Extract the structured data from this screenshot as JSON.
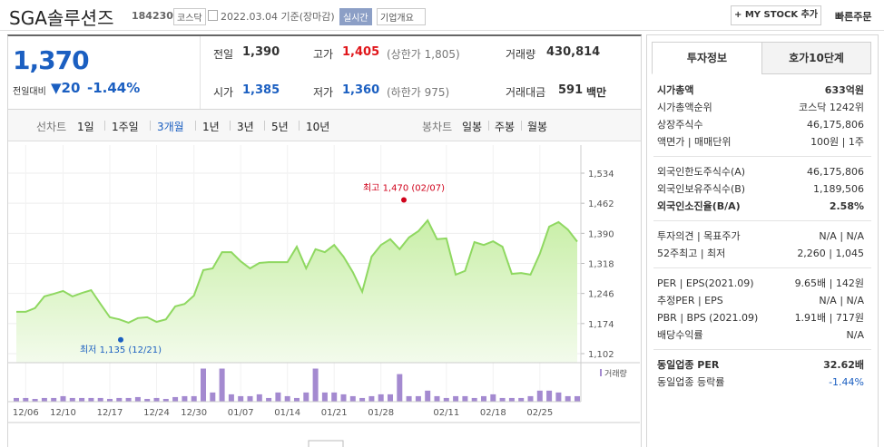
{
  "header": {
    "name": "SGA솔루션즈",
    "code": "184230",
    "market": "코스닥",
    "date": "2022.03.04 기준(장마감)",
    "realtime": "실시간",
    "overview": "기업개요",
    "mystock": "+ MY STOCK 추가",
    "quick_order": "빠른주문"
  },
  "quote": {
    "price": "1,370",
    "change_label": "전일대비",
    "change": "▼20",
    "change_pct": "-1.44%",
    "stats": [
      {
        "label": "전일",
        "value": "1,390"
      },
      {
        "label": "고가",
        "value": "1,405",
        "note": "(상한가 1,805)",
        "color": "#e0161b"
      },
      {
        "label": "거래량",
        "value": "430,814"
      },
      {
        "label": "시가",
        "value": "1,385",
        "color": "#1b5fc1"
      },
      {
        "label": "저가",
        "value": "1,360",
        "note": "(하한가 975)",
        "color": "#1b5fc1"
      },
      {
        "label": "거래대금",
        "value": "591",
        "note": "백만"
      }
    ]
  },
  "tabs": {
    "line_label": "선차트",
    "line_items": [
      "1일",
      "1주일",
      "3개월",
      "1년",
      "3년",
      "5년",
      "10년"
    ],
    "selected": 2,
    "candle_label": "봉차트",
    "candle_items": [
      "일봉",
      "주봉",
      "월봉"
    ]
  },
  "chart_data": [
    {
      "type": "line",
      "color": "#8fd861",
      "categories": [
        null,
        "12/06",
        null,
        null,
        null,
        "12/10",
        null,
        null,
        null,
        null,
        "12/17",
        null,
        null,
        null,
        null,
        "12/24",
        null,
        null,
        null,
        "12/30",
        null,
        null,
        null,
        null,
        "01/07",
        null,
        null,
        null,
        null,
        "01/14",
        null,
        null,
        null,
        null,
        "01/21",
        null,
        null,
        null,
        null,
        "01/28",
        null,
        null,
        null,
        null,
        null,
        null,
        "02/11",
        null,
        null,
        null,
        null,
        "02/18",
        null,
        null,
        null,
        null,
        "02/25",
        null,
        null,
        null,
        null
      ],
      "values": [
        1202,
        1202,
        1211,
        1239,
        1245,
        1252,
        1239,
        1247,
        1254,
        1221,
        1189,
        1184,
        1176,
        1187,
        1189,
        1178,
        1184,
        1215,
        1221,
        1241,
        1302,
        1306,
        1345,
        1345,
        1323,
        1306,
        1319,
        1321,
        1321,
        1321,
        1358,
        1306,
        1352,
        1345,
        1362,
        1334,
        1297,
        1250,
        1334,
        1362,
        1376,
        1352,
        1380,
        1395,
        1421,
        1376,
        1378,
        1291,
        1300,
        1369,
        1362,
        1371,
        1358,
        1293,
        1295,
        1291,
        1341,
        1406,
        1417,
        1399,
        1370
      ],
      "ylim": [
        1102,
        1534
      ],
      "yticks": [
        {
          "value": 1102,
          "label": "1,102"
        },
        {
          "value": 1174,
          "label": "1,174"
        },
        {
          "value": 1246,
          "label": "1,246"
        },
        {
          "value": 1318,
          "label": "1,318"
        },
        {
          "value": 1390,
          "label": "1,390"
        },
        {
          "value": 1462,
          "label": "1,462"
        },
        {
          "value": 1534,
          "label": "1,534"
        }
      ],
      "grid": true,
      "annotations": [
        {
          "text": "최고 1,470 (02/07)",
          "value": 1470,
          "color": "#d0021b"
        },
        {
          "text": "최저 1,135 (12/21)",
          "value": 1135,
          "color": "#1b5fc1"
        }
      ]
    },
    {
      "type": "bar",
      "label": "거래량",
      "color": "#a48ad0",
      "ylim": [
        0,
        2700000
      ],
      "values": [
        288000,
        288000,
        216000,
        288000,
        288000,
        432000,
        288000,
        288000,
        288000,
        288000,
        216000,
        288000,
        288000,
        360000,
        216000,
        288000,
        216000,
        360000,
        432000,
        432000,
        2592000,
        720000,
        2592000,
        576000,
        432000,
        432000,
        576000,
        288000,
        720000,
        432000,
        288000,
        720000,
        2592000,
        720000,
        720000,
        576000,
        432000,
        288000,
        432000,
        576000,
        576000,
        2160000,
        432000,
        432000,
        864000,
        432000,
        288000,
        432000,
        432000,
        288000,
        432000,
        576000,
        288000,
        288000,
        288000,
        432000,
        864000,
        864000,
        720000,
        432000,
        430814
      ]
    }
  ],
  "info": {
    "tabs": [
      "투자정보",
      "호가10단계"
    ],
    "selected": 0,
    "sections": [
      [
        {
          "label": "시가총액",
          "value": "633억원",
          "bold": true
        },
        {
          "label": "시가총액순위",
          "value": "코스닥 1242위"
        },
        {
          "label": "상장주식수",
          "value": "46,175,806"
        },
        {
          "label": "액면가 | 매매단위",
          "value": "100원 | 1주"
        }
      ],
      [
        {
          "label": "외국인한도주식수(A)",
          "value": "46,175,806"
        },
        {
          "label": "외국인보유주식수(B)",
          "value": "1,189,506"
        },
        {
          "label": "외국인소진율(B/A)",
          "value": "2.58%",
          "bold": true
        }
      ],
      [
        {
          "label": "투자의견 | 목표주가",
          "value": "N/A | N/A"
        },
        {
          "label": "52주최고 | 최저",
          "value": "2,260 | 1,045"
        }
      ],
      [
        {
          "label": "PER | EPS(2021.09)",
          "value": "9.65배 | 142원"
        },
        {
          "label": "추정PER | EPS",
          "value": "N/A | N/A"
        },
        {
          "label": "PBR | BPS (2021.09)",
          "value": "1.91배 | 717원"
        },
        {
          "label": "배당수익률",
          "value": "N/A"
        }
      ],
      [
        {
          "label": "동일업종 PER",
          "value": "32.62배",
          "bold": true
        },
        {
          "label": "동일업종 등락률",
          "value": "-1.44%",
          "color": "#1b5fc1"
        }
      ]
    ]
  }
}
